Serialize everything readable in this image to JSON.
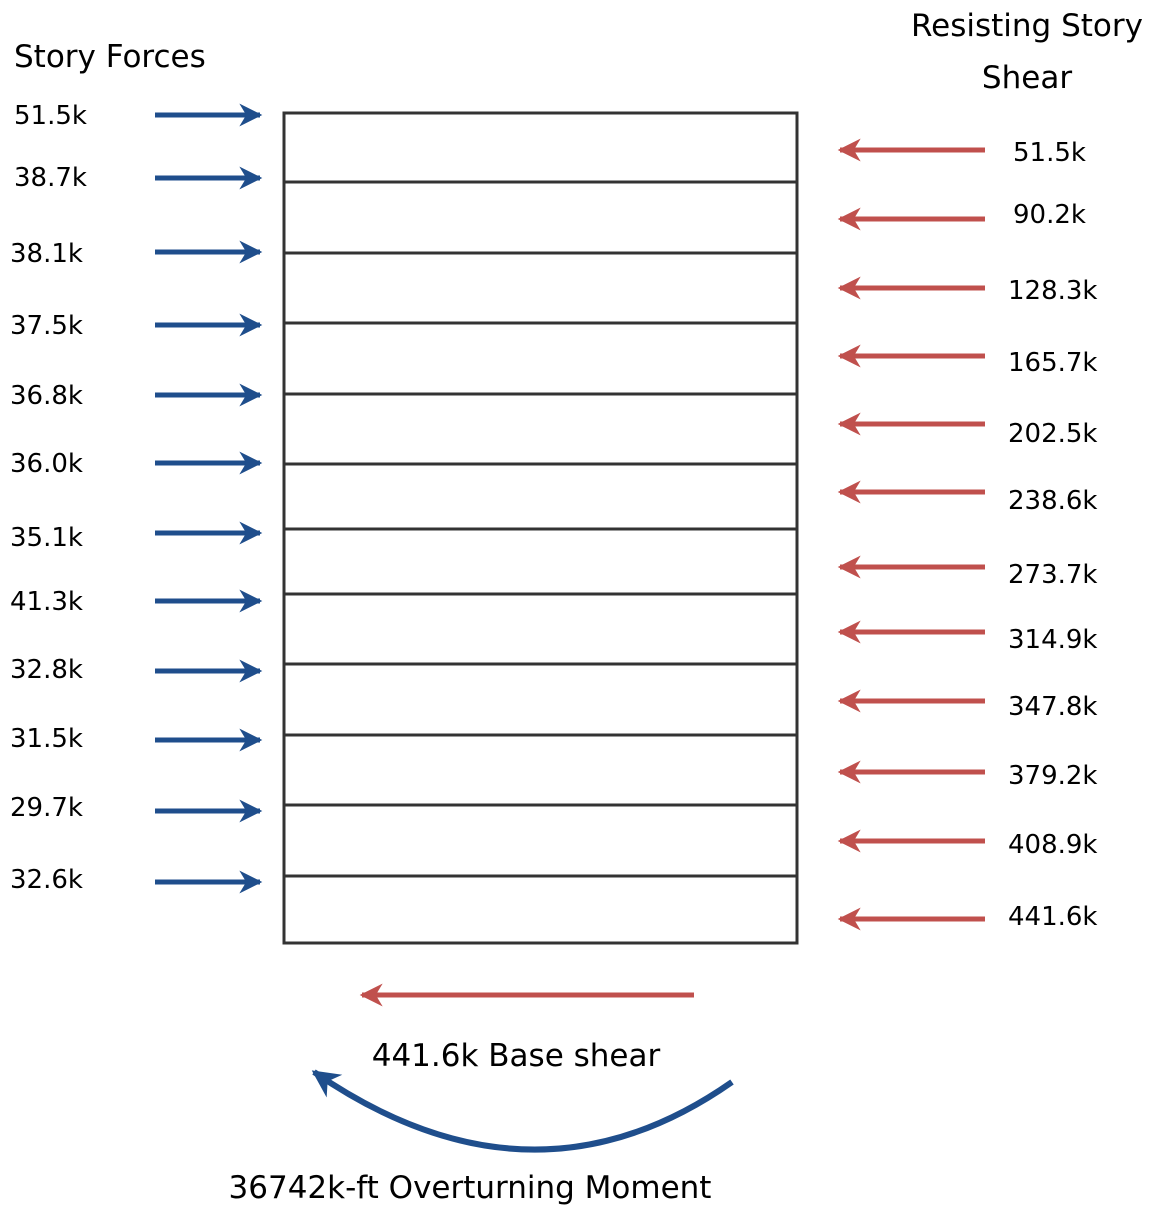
{
  "left_heading": "Story Forces",
  "right_heading_lines": [
    "Resisting Story",
    "Shear"
  ],
  "story_forces": [
    "51.5k",
    "38.7k",
    "38.1k",
    "37.5k",
    "36.8k",
    "36.0k",
    "35.1k",
    "41.3k",
    "32.8k",
    "31.5k",
    "29.7k",
    "32.6k"
  ],
  "story_shears": [
    "51.5k",
    "90.2k",
    "128.3k",
    "165.7k",
    "202.5k",
    "238.6k",
    "273.7k",
    "314.9k",
    "347.8k",
    "379.2k",
    "408.9k",
    "441.6k"
  ],
  "base_shear_label": "441.6k Base shear",
  "overturning_moment_label": "36742k-ft Overturning Moment",
  "colors": {
    "force_arrow": "#1f4e8c",
    "shear_arrow": "#c0504d",
    "frame": "#333333",
    "text": "#000000"
  }
}
